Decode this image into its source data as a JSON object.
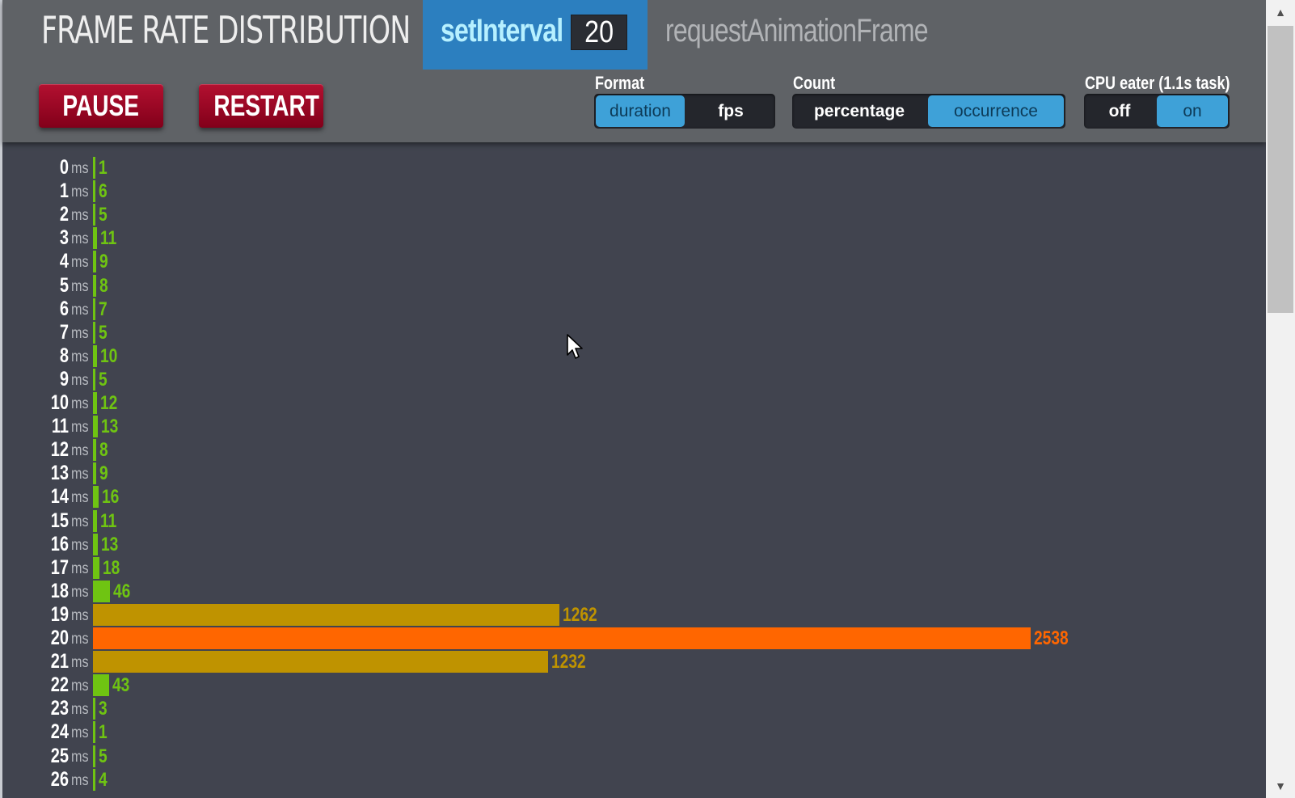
{
  "header": {
    "title": "FRAME RATE DISTRIBUTION",
    "mode_setinterval": "setInterval",
    "interval_value": "20",
    "mode_raf": "requestAnimationFrame"
  },
  "controls": {
    "pause_label": "PAUSE",
    "restart_label": "RESTART",
    "format": {
      "label": "Format",
      "options": [
        "duration",
        "fps"
      ],
      "selected": "duration"
    },
    "count": {
      "label": "Count",
      "options": [
        "percentage",
        "occurrence"
      ],
      "selected": "occurrence"
    },
    "cpu": {
      "label": "CPU eater (1.1s task)",
      "options": [
        "off",
        "on"
      ],
      "selected": "on"
    }
  },
  "chart_data": {
    "type": "bar",
    "orientation": "horizontal",
    "unit": "ms",
    "categories": [
      "0",
      "1",
      "2",
      "3",
      "4",
      "5",
      "6",
      "7",
      "8",
      "9",
      "10",
      "11",
      "12",
      "13",
      "14",
      "15",
      "16",
      "17",
      "18",
      "19",
      "20",
      "21",
      "22",
      "23",
      "24",
      "25",
      "26"
    ],
    "values": [
      1,
      6,
      5,
      11,
      9,
      8,
      7,
      5,
      10,
      5,
      12,
      13,
      8,
      9,
      16,
      11,
      13,
      18,
      46,
      1262,
      2538,
      1232,
      43,
      3,
      1,
      5,
      4
    ],
    "max_value": 2538
  },
  "colors": {
    "low": "#6fc412",
    "mid": "#bf9300",
    "peak": "#ff6600",
    "accent": "#2c7fbf",
    "button_red": "#9f0a28"
  }
}
